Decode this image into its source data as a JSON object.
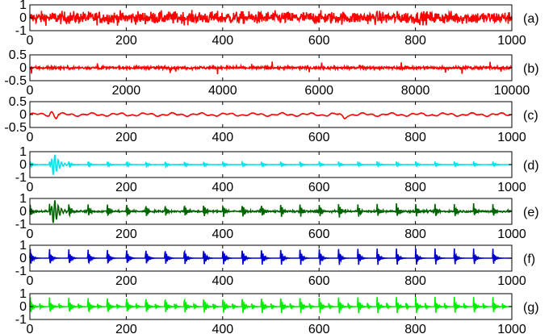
{
  "figure": {
    "panels_order": [
      "a",
      "b",
      "c",
      "d",
      "e",
      "f",
      "g"
    ]
  },
  "chart_data": [
    {
      "panel": "(a)",
      "type": "line",
      "color": "#ff0000",
      "xlim": [
        0,
        1000
      ],
      "ylim": [
        -1,
        1
      ],
      "xticks": [
        "0",
        "200",
        "400",
        "600",
        "800",
        "1000"
      ],
      "yticks": [
        "1",
        "0",
        "-1"
      ],
      "signal": "random noise, amplitude approx 0.9",
      "series": [
        {
          "amplitude": 0.9,
          "kind": "noise"
        }
      ]
    },
    {
      "panel": "(b)",
      "type": "line",
      "color": "#ff0000",
      "xlim": [
        0,
        10000
      ],
      "ylim": [
        -0.5,
        0.5
      ],
      "xticks": [
        "0",
        "2000",
        "4000",
        "6000",
        "8000",
        "10000"
      ],
      "yticks": [
        "0.5",
        "0",
        "-0.5"
      ],
      "signal": "low-amplitude noise with occasional spikes",
      "series": [
        {
          "amplitude": 0.15,
          "kind": "noise-spiky"
        }
      ]
    },
    {
      "panel": "(c)",
      "type": "line",
      "color": "#ff0000",
      "xlim": [
        0,
        1000
      ],
      "ylim": [
        -0.5,
        0.5
      ],
      "xticks": [
        "0",
        "200",
        "400",
        "600",
        "800",
        "1000"
      ],
      "yticks": [
        "0.5",
        "0",
        "-0.5"
      ],
      "signal": "smooth low-amplitude fluctuation",
      "series": [
        {
          "amplitude": 0.12,
          "kind": "smooth"
        }
      ]
    },
    {
      "panel": "(d)",
      "type": "line",
      "color": "#00e5ee",
      "xlim": [
        0,
        1000
      ],
      "ylim": [
        -1,
        1
      ],
      "xticks": [
        "0",
        "200",
        "400",
        "600",
        "800",
        "1000"
      ],
      "yticks": [
        "1",
        "0",
        "-1"
      ],
      "signal": "periodic small bursts, large transient near x=50",
      "series": [
        {
          "period": 40,
          "amplitude": 0.3,
          "transient_at": 50,
          "transient_amp": 0.9,
          "kind": "bursts"
        }
      ]
    },
    {
      "panel": "(e)",
      "type": "line",
      "color": "#006400",
      "xlim": [
        0,
        1000
      ],
      "ylim": [
        -1,
        1
      ],
      "xticks": [
        "0",
        "200",
        "400",
        "600",
        "800",
        "1000"
      ],
      "yticks": [
        "1",
        "0",
        "-1"
      ],
      "signal": "periodic bursts with noise, strong oscillation near x=50",
      "series": [
        {
          "period": 40,
          "amplitude": 0.7,
          "transient_at": 50,
          "transient_amp": 1.0,
          "kind": "bursts-noisy"
        }
      ]
    },
    {
      "panel": "(f)",
      "type": "line",
      "color": "#0000cd",
      "xlim": [
        0,
        1000
      ],
      "ylim": [
        -1,
        1
      ],
      "xticks": [
        "0",
        "200",
        "400",
        "600",
        "800",
        "1000"
      ],
      "yticks": [
        "1",
        "0",
        "-1"
      ],
      "signal": "clean periodic impulses",
      "series": [
        {
          "period": 40,
          "amplitude": 0.9,
          "kind": "impulses"
        }
      ]
    },
    {
      "panel": "(g)",
      "type": "line",
      "color": "#00ee00",
      "xlim": [
        0,
        1000
      ],
      "ylim": [
        -1,
        1
      ],
      "xticks": [
        "0",
        "200",
        "400",
        "600",
        "800",
        "1000"
      ],
      "yticks": [
        "1",
        "0",
        "-1"
      ],
      "signal": "periodic impulses with secondary small peaks",
      "series": [
        {
          "period": 40,
          "amplitude": 0.9,
          "kind": "impulses-double"
        }
      ]
    }
  ]
}
